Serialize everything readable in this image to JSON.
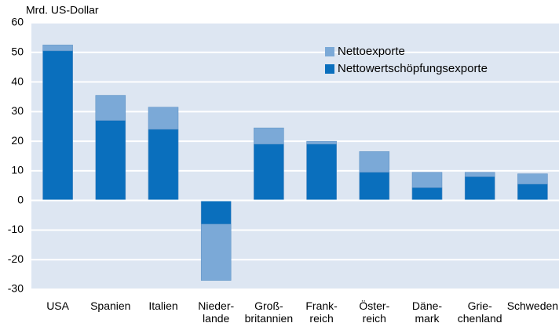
{
  "chart_data": {
    "type": "bar",
    "y_label": "Mrd. US-Dollar",
    "categories": [
      "USA",
      "Spanien",
      "Italien",
      "Nieder-\nlande",
      "Groß-\nbritannien",
      "Frank-\nreich",
      "Öster-\nreich",
      "Däne-\nmark",
      "Grie-\nchenland",
      "Schweden"
    ],
    "series": [
      {
        "name": "Nettoexporte",
        "color": "#7ba9d7",
        "values": [
          52.5,
          35.5,
          31.5,
          -27,
          24.5,
          20,
          16.5,
          9.5,
          9.5,
          9
        ]
      },
      {
        "name": "Nettowertschöpfungsexporte",
        "color": "#0a6fbd",
        "values": [
          50.5,
          27,
          24,
          -8,
          19,
          19,
          9.5,
          4.3,
          8,
          5.5
        ]
      }
    ],
    "ylim": [
      -30,
      60
    ],
    "yticks": [
      -30,
      -20,
      -10,
      0,
      10,
      20,
      30,
      40,
      50,
      60
    ],
    "grid": true,
    "legend": "upper right"
  }
}
